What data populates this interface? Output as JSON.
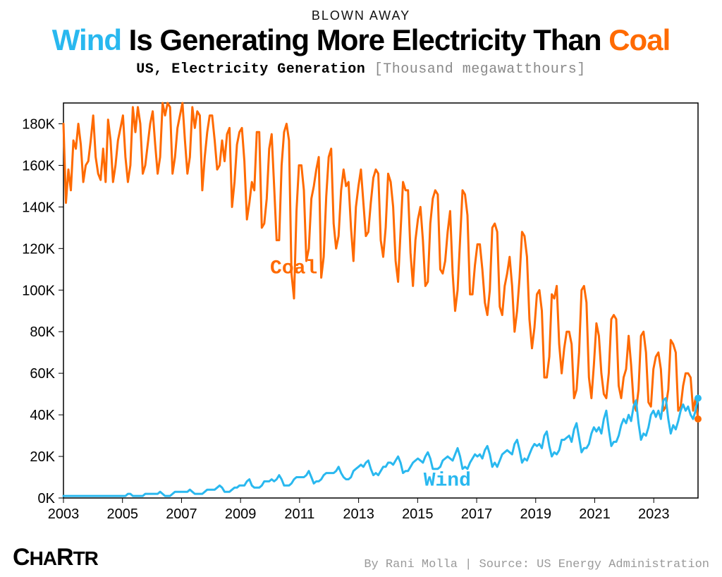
{
  "kicker": "BLOWN AWAY",
  "headline": {
    "wind": "Wind",
    "mid": " Is Generating More Electricity Than ",
    "coal": "Coal"
  },
  "subhead": {
    "bold": "US, Electricity Generation",
    "unit": " [Thousand megawatthours]"
  },
  "chart": {
    "type": "line",
    "x_start": 2003,
    "x_end": 2024.5,
    "ylim": [
      0,
      190
    ],
    "ytick_step": 20,
    "ytick_prefix": "",
    "ytick_suffix": "K",
    "xticks": [
      2003,
      2005,
      2007,
      2009,
      2011,
      2013,
      2015,
      2017,
      2019,
      2021,
      2023
    ],
    "background_color": "#ffffff",
    "border_color": "#000000",
    "tick_color": "#000000",
    "axis_fontsize": 20,
    "line_width": 3,
    "end_marker_radius": 5,
    "series": {
      "coal": {
        "label": "Coal",
        "label_x": 2010.0,
        "label_y": 108,
        "color": "#ff6a00",
        "values": [
          180,
          142,
          158,
          148,
          172,
          168,
          180,
          170,
          152,
          160,
          162,
          172,
          184,
          164,
          156,
          153,
          168,
          152,
          182,
          172,
          152,
          160,
          172,
          178,
          184,
          164,
          152,
          160,
          188,
          176,
          188,
          180,
          156,
          160,
          170,
          180,
          186,
          170,
          156,
          164,
          190,
          184,
          190,
          188,
          156,
          164,
          178,
          184,
          190,
          172,
          156,
          164,
          188,
          178,
          186,
          184,
          148,
          164,
          176,
          184,
          184,
          172,
          158,
          160,
          172,
          162,
          175,
          178,
          140,
          152,
          170,
          176,
          178,
          162,
          134,
          142,
          152,
          148,
          176,
          176,
          130,
          132,
          144,
          168,
          175,
          150,
          124,
          124,
          160,
          176,
          180,
          172,
          108,
          96,
          138,
          160,
          160,
          148,
          114,
          120,
          144,
          150,
          158,
          164,
          106,
          116,
          145,
          164,
          168,
          132,
          120,
          126,
          148,
          158,
          150,
          152,
          130,
          114,
          140,
          150,
          158,
          142,
          126,
          128,
          142,
          154,
          158,
          156,
          124,
          116,
          130,
          156,
          152,
          140,
          114,
          104,
          128,
          152,
          148,
          148,
          118,
          102,
          124,
          134,
          140,
          124,
          102,
          104,
          132,
          144,
          148,
          146,
          110,
          108,
          114,
          128,
          138,
          108,
          90,
          100,
          124,
          148,
          146,
          136,
          98,
          98,
          112,
          122,
          122,
          110,
          94,
          88,
          100,
          130,
          132,
          128,
          92,
          88,
          102,
          108,
          116,
          102,
          80,
          90,
          106,
          128,
          126,
          116,
          86,
          72,
          82,
          98,
          100,
          90,
          58,
          58,
          68,
          98,
          96,
          102,
          74,
          60,
          72,
          80,
          80,
          74,
          48,
          52,
          70,
          100,
          102,
          94,
          58,
          48,
          64,
          84,
          78,
          60,
          50,
          48,
          60,
          86,
          88,
          86,
          54,
          48,
          58,
          62,
          78,
          64,
          46,
          42,
          52,
          78,
          80,
          70,
          46,
          44,
          62,
          68,
          70,
          62,
          42,
          44,
          52,
          76,
          74,
          70,
          42,
          44,
          54,
          60,
          60,
          58,
          42,
          48,
          38
        ]
      },
      "wind": {
        "label": "Wind",
        "label_x": 2015.2,
        "label_y": 6,
        "color": "#29b8ef",
        "values": [
          1,
          1,
          1,
          1,
          1,
          1,
          1,
          1,
          1,
          1,
          1,
          1,
          1,
          1,
          1,
          1,
          1,
          1,
          1,
          1,
          1,
          1,
          1,
          1,
          1,
          1,
          2,
          2,
          1,
          1,
          1,
          1,
          1,
          2,
          2,
          2,
          2,
          2,
          2,
          3,
          2,
          1,
          1,
          1,
          2,
          3,
          3,
          3,
          3,
          3,
          3,
          4,
          3,
          2,
          2,
          2,
          2,
          3,
          4,
          4,
          4,
          4,
          5,
          6,
          5,
          3,
          3,
          3,
          4,
          5,
          5,
          6,
          6,
          6,
          8,
          9,
          6,
          5,
          5,
          5,
          6,
          8,
          8,
          8,
          9,
          8,
          9,
          11,
          9,
          6,
          6,
          6,
          7,
          9,
          10,
          10,
          10,
          10,
          11,
          13,
          10,
          7,
          8,
          8,
          9,
          11,
          12,
          12,
          12,
          12,
          13,
          15,
          12,
          10,
          9,
          9,
          10,
          13,
          14,
          15,
          16,
          15,
          17,
          18,
          14,
          11,
          12,
          11,
          13,
          15,
          15,
          17,
          17,
          16,
          18,
          20,
          17,
          12,
          13,
          13,
          15,
          17,
          18,
          19,
          18,
          17,
          20,
          22,
          19,
          14,
          14,
          14,
          15,
          18,
          19,
          20,
          19,
          18,
          21,
          24,
          20,
          14,
          15,
          14,
          17,
          19,
          21,
          20,
          21,
          19,
          23,
          25,
          21,
          15,
          17,
          15,
          18,
          21,
          22,
          23,
          22,
          21,
          26,
          28,
          23,
          17,
          19,
          18,
          21,
          24,
          26,
          25,
          26,
          24,
          30,
          32,
          25,
          20,
          22,
          21,
          23,
          28,
          28,
          29,
          30,
          27,
          33,
          36,
          29,
          22,
          24,
          24,
          26,
          31,
          34,
          32,
          34,
          31,
          38,
          42,
          33,
          25,
          27,
          27,
          30,
          35,
          38,
          36,
          40,
          37,
          44,
          47,
          36,
          28,
          31,
          30,
          34,
          40,
          42,
          39,
          42,
          38,
          47,
          48,
          38,
          31,
          35,
          33,
          37,
          42,
          45,
          42,
          44,
          40,
          38,
          42,
          48
        ]
      }
    }
  },
  "footer": {
    "logo_part1": "C",
    "logo_part2": "HA",
    "logo_part3": "R",
    "logo_part4": "TR",
    "byline": "By Rani Molla | Source: US Energy Administration"
  }
}
